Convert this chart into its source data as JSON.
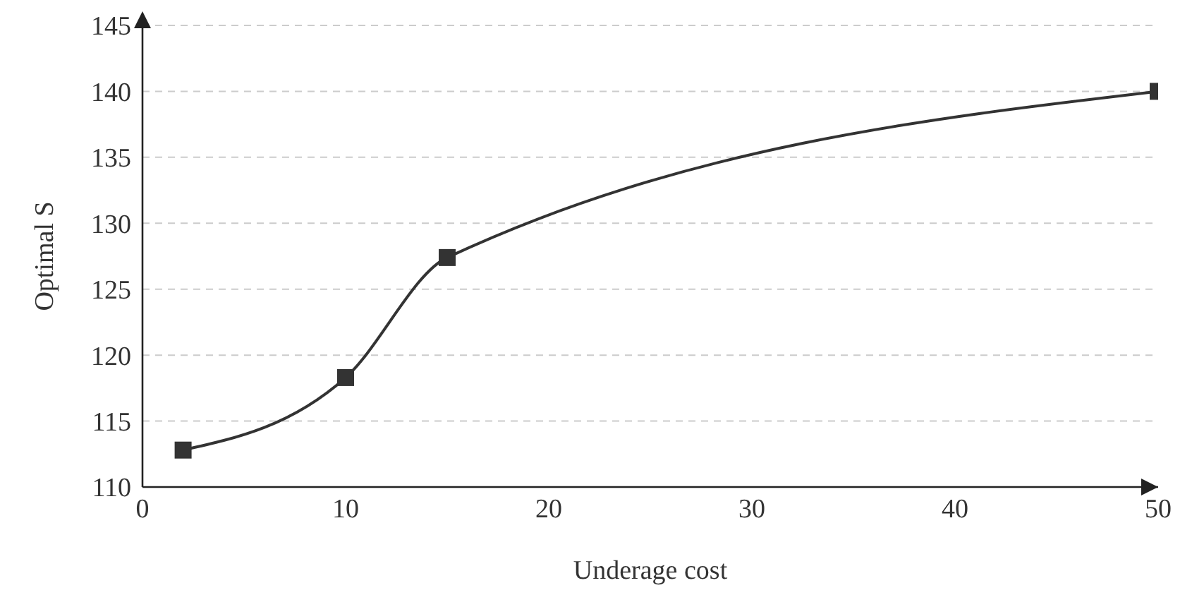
{
  "chart_data": {
    "type": "line",
    "xlabel": "Underage cost",
    "ylabel": "Optimal S",
    "x": [
      2,
      10,
      15,
      50
    ],
    "series": [
      {
        "color": "#333333",
        "values": [
          112.8,
          118.3,
          127.4,
          140
        ]
      }
    ],
    "xlim": [
      0,
      50
    ],
    "xticks": [
      0,
      10,
      20,
      30,
      40,
      50
    ],
    "ylim": [
      110,
      145
    ],
    "yticks": [
      110,
      115,
      120,
      125,
      130,
      135,
      140,
      145
    ],
    "grid": "y",
    "marker": "square",
    "line_style": "solid"
  }
}
